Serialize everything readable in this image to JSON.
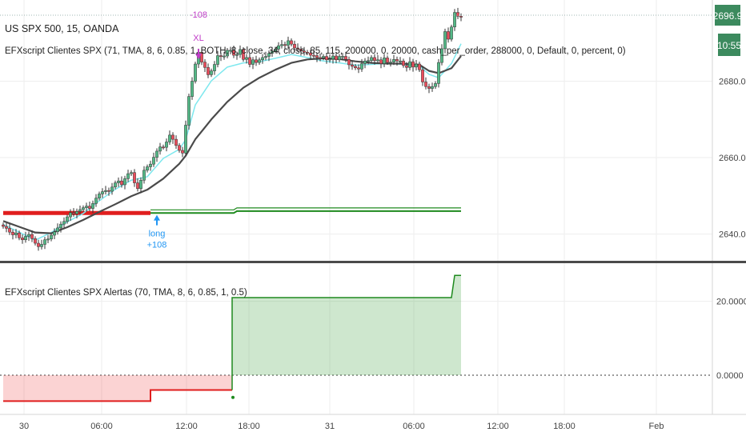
{
  "main_pane": {
    "symbol_title": "US SPX 500, 15, OANDA",
    "indicator_title": "EFXscript Clientes SPX (71, TMA, 8, 6, 0.85, 1, BOTH, 8, close, 34, close, 85, 115, 200000, 0, 20000, cash_per_order, 288000, 0, Default, 0, percent, 0)",
    "last_price_label": "2696.9",
    "countdown_label": "10:55",
    "trade_labels": {
      "entry_text": "long",
      "entry_amount": "+108",
      "exit_text": "XL",
      "exit_amount": "-108"
    }
  },
  "lower_pane": {
    "indicator_title": "EFXscript Clientes SPX Alertas (70, TMA, 8, 6, 0.85, 1, 0.5)"
  },
  "colors": {
    "bull_candle": "#53b987",
    "bear_candle": "#eb4d5c",
    "fast_ma": "#7ee8ee",
    "slow_ma": "#4a4a4a",
    "stop_red": "#e01e1e",
    "stop_green": "#1e8a1e",
    "signal_label": "#2196f3",
    "exit_label": "#c03cc8",
    "price_tag": "#3c8a5e",
    "pane_separator": "#4a4a4a"
  },
  "chart_data": [
    {
      "type": "line",
      "pane": "price",
      "y_ticks": [
        2640.0,
        2660.0,
        2680.0
      ],
      "ylim": [
        2633,
        2700
      ],
      "x_ticks": [
        "30",
        "06:00",
        "12:00",
        "18:00",
        "31",
        "06:00",
        "12:00",
        "18:00",
        "Feb"
      ],
      "series": [
        {
          "kind": "candles",
          "x": [
            0,
            1,
            2,
            3,
            4,
            5,
            6,
            7,
            8,
            9,
            10,
            11,
            12,
            13,
            14,
            15,
            16,
            17,
            18,
            19,
            20,
            21,
            22,
            23,
            24,
            25,
            26,
            27,
            28,
            29,
            30,
            31,
            32,
            33,
            34,
            35,
            36,
            37,
            38,
            39,
            40,
            41,
            42,
            43,
            44,
            45,
            46,
            47,
            48,
            49,
            50,
            51,
            52,
            53,
            54,
            55,
            56,
            57,
            58,
            59,
            60,
            61,
            62,
            63,
            64,
            65,
            66,
            67,
            68,
            69,
            70,
            71,
            72,
            73,
            74,
            75,
            76,
            77,
            78,
            79,
            80,
            81,
            82,
            83,
            84,
            85,
            86,
            87,
            88,
            89,
            90,
            91,
            92,
            93,
            94,
            95,
            96,
            97,
            98,
            99,
            100,
            101,
            102,
            103,
            104,
            105,
            106,
            107,
            108,
            109,
            110,
            111,
            112,
            113,
            114,
            115,
            116,
            117,
            118,
            119,
            120,
            121,
            122,
            123,
            124,
            125,
            126,
            127,
            128,
            129,
            130,
            131,
            132,
            133,
            134,
            135,
            136,
            137,
            138,
            139,
            140,
            141,
            142,
            143
          ],
          "close": [
            2642.0,
            2641.5,
            2640.5,
            2639.8,
            2640.3,
            2639.0,
            2638.5,
            2639.4,
            2639.9,
            2638.8,
            2637.6,
            2636.7,
            2637.3,
            2638.5,
            2638.7,
            2639.7,
            2640.6,
            2641.6,
            2642.6,
            2643.3,
            2644.5,
            2645.6,
            2645.3,
            2645.9,
            2646.4,
            2646.9,
            2647.3,
            2646.7,
            2648.0,
            2649.4,
            2650.5,
            2651.1,
            2651.4,
            2651.2,
            2652.3,
            2653.4,
            2653.9,
            2652.9,
            2654.5,
            2655.8,
            2656.1,
            2653.4,
            2651.9,
            2654.1,
            2656.7,
            2657.6,
            2658.3,
            2660.1,
            2661.7,
            2662.8,
            2662.7,
            2664.1,
            2665.9,
            2664.8,
            2663.2,
            2661.9,
            2661.2,
            2668.5,
            2676.0,
            2680.0,
            2684.5,
            2687.6,
            2685.0,
            2683.6,
            2681.7,
            2682.7,
            2684.4,
            2686.7,
            2686.5,
            2686.6,
            2688.1,
            2688.1,
            2686.8,
            2687.0,
            2688.3,
            2685.7,
            2686.2,
            2684.4,
            2685.6,
            2684.9,
            2685.6,
            2686.2,
            2686.5,
            2687.3,
            2687.9,
            2688.4,
            2689.3,
            2689.6,
            2689.4,
            2690.6,
            2689.7,
            2688.7,
            2688.4,
            2687.9,
            2687.6,
            2687.4,
            2686.8,
            2686.7,
            2686.2,
            2686.1,
            2686.5,
            2685.6,
            2685.8,
            2686.6,
            2685.6,
            2686.5,
            2686.5,
            2685.7,
            2684.3,
            2683.9,
            2683.5,
            2683.2,
            2684.6,
            2685.3,
            2685.4,
            2686.2,
            2685.4,
            2685.6,
            2684.6,
            2686.1,
            2684.9,
            2685.0,
            2685.7,
            2685.3,
            2685.3,
            2684.1,
            2683.6,
            2685.1,
            2683.7,
            2684.5,
            2683.0,
            2679.8,
            2678.6,
            2678.1,
            2678.6,
            2679.4,
            2684.9,
            2688.5,
            2693.0,
            2691.0,
            2694.2,
            2698.0,
            2697.0,
            2696.9
          ]
        },
        {
          "name": "",
          "kind": "fast_ma",
          "x": [
            0,
            5,
            10,
            15,
            20,
            25,
            30,
            35,
            40,
            45,
            50,
            55,
            57,
            60,
            65,
            70,
            75,
            80,
            85,
            90,
            95,
            100,
            105,
            110,
            115,
            120,
            125,
            130,
            133,
            136,
            140,
            143
          ],
          "y": [
            2642.5,
            2640.5,
            2638.4,
            2640.4,
            2643.2,
            2645.4,
            2648.7,
            2651.7,
            2654.1,
            2655.0,
            2659.8,
            2662.2,
            2664.7,
            2673.8,
            2680.1,
            2683.7,
            2684.8,
            2685.1,
            2686.0,
            2687.0,
            2686.2,
            2685.3,
            2684.8,
            2684.2,
            2684.4,
            2684.7,
            2684.4,
            2684.0,
            2681.8,
            2680.9,
            2684.6,
            2689.8
          ]
        },
        {
          "name": "",
          "kind": "slow_ma",
          "x": [
            0,
            5,
            10,
            15,
            20,
            25,
            30,
            35,
            40,
            45,
            50,
            55,
            57,
            60,
            65,
            70,
            75,
            80,
            85,
            90,
            95,
            100,
            105,
            110,
            115,
            120,
            125,
            130,
            133,
            136,
            140,
            143
          ],
          "y": [
            2643.4,
            2641.9,
            2640.4,
            2640.2,
            2641.8,
            2643.7,
            2645.8,
            2647.8,
            2649.9,
            2651.6,
            2654.5,
            2658.4,
            2660.5,
            2664.8,
            2670.0,
            2674.6,
            2678.3,
            2680.9,
            2683.0,
            2684.8,
            2685.7,
            2686.0,
            2685.8,
            2685.2,
            2684.8,
            2684.6,
            2684.6,
            2684.3,
            2682.7,
            2682.1,
            2683.4,
            2686.6
          ]
        },
        {
          "name": "",
          "kind": "short_stop",
          "x": [
            0,
            46
          ],
          "y": [
            2645.5,
            2645.5
          ]
        },
        {
          "name": "",
          "kind": "long_stop",
          "x": [
            46,
            72,
            73,
            143
          ],
          "y": [
            2645.5,
            2645.5,
            2646.0,
            2646.0
          ]
        }
      ],
      "markers": [
        {
          "label": "long",
          "amount": "+108",
          "x": 48,
          "y": 2645.0,
          "direction": "up"
        },
        {
          "label": "XL",
          "amount": "-108",
          "x": 61,
          "y": 2687.0,
          "direction": "down"
        }
      ]
    },
    {
      "type": "area",
      "pane": "alerts",
      "y_ticks": [
        0.0,
        20.0
      ],
      "ylim": [
        -10.6,
        30.3
      ],
      "series": [
        {
          "name": "",
          "x": [
            0,
            46,
            46,
            71.5,
            71.5,
            140,
            141,
            143
          ],
          "y": [
            -7.0,
            -7.0,
            -4.0,
            -4.0,
            21.0,
            21.0,
            27.0,
            27.0
          ]
        }
      ],
      "zero_line": "dotted"
    }
  ]
}
